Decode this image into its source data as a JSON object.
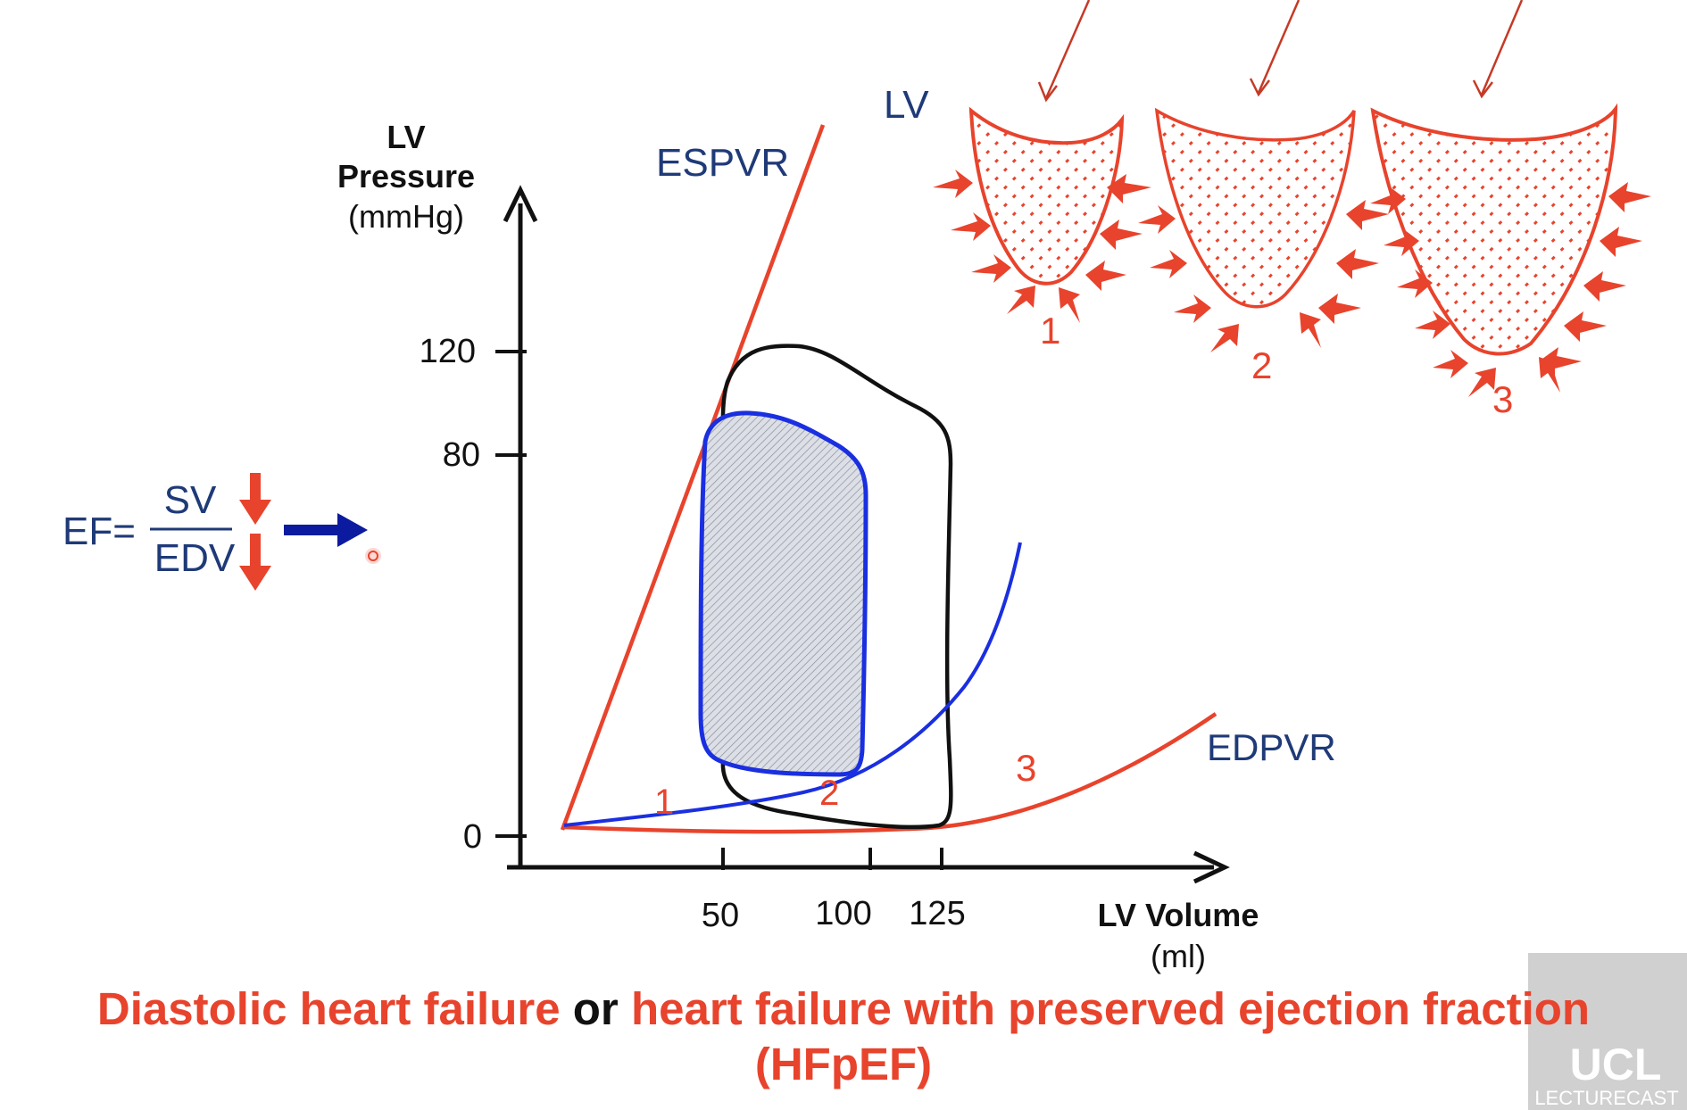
{
  "y_axis": {
    "label_line1": "LV",
    "label_line2": "Pressure",
    "unit": "(mmHg)",
    "ticks": [
      "120",
      "80",
      "0"
    ]
  },
  "x_axis": {
    "label": "LV Volume",
    "unit": "(ml)",
    "ticks": [
      "50",
      "100",
      "125"
    ]
  },
  "curve_labels": {
    "espvr": "ESPVR",
    "edpvr": "EDPVR",
    "n1": "1",
    "n2": "2",
    "n3": "3"
  },
  "lv_label": "LV",
  "ventricles": {
    "labels": [
      "1",
      "2",
      "3"
    ]
  },
  "ef_formula": {
    "lhs": "EF=",
    "numerator": "SV",
    "denominator": "EDV"
  },
  "title": {
    "part1": "Diastolic heart failure",
    "part2": " or ",
    "part3": "heart failure with preserved ejection fraction",
    "line2": "(HFpEF)"
  },
  "logo": {
    "main": "UCL",
    "sub": "LECTURECAST"
  },
  "colors": {
    "red": "#e8432c",
    "navy": "#1f3a78",
    "blue": "#1a2fe0",
    "arrow_navy": "#0b1a9e",
    "black": "#111111"
  }
}
